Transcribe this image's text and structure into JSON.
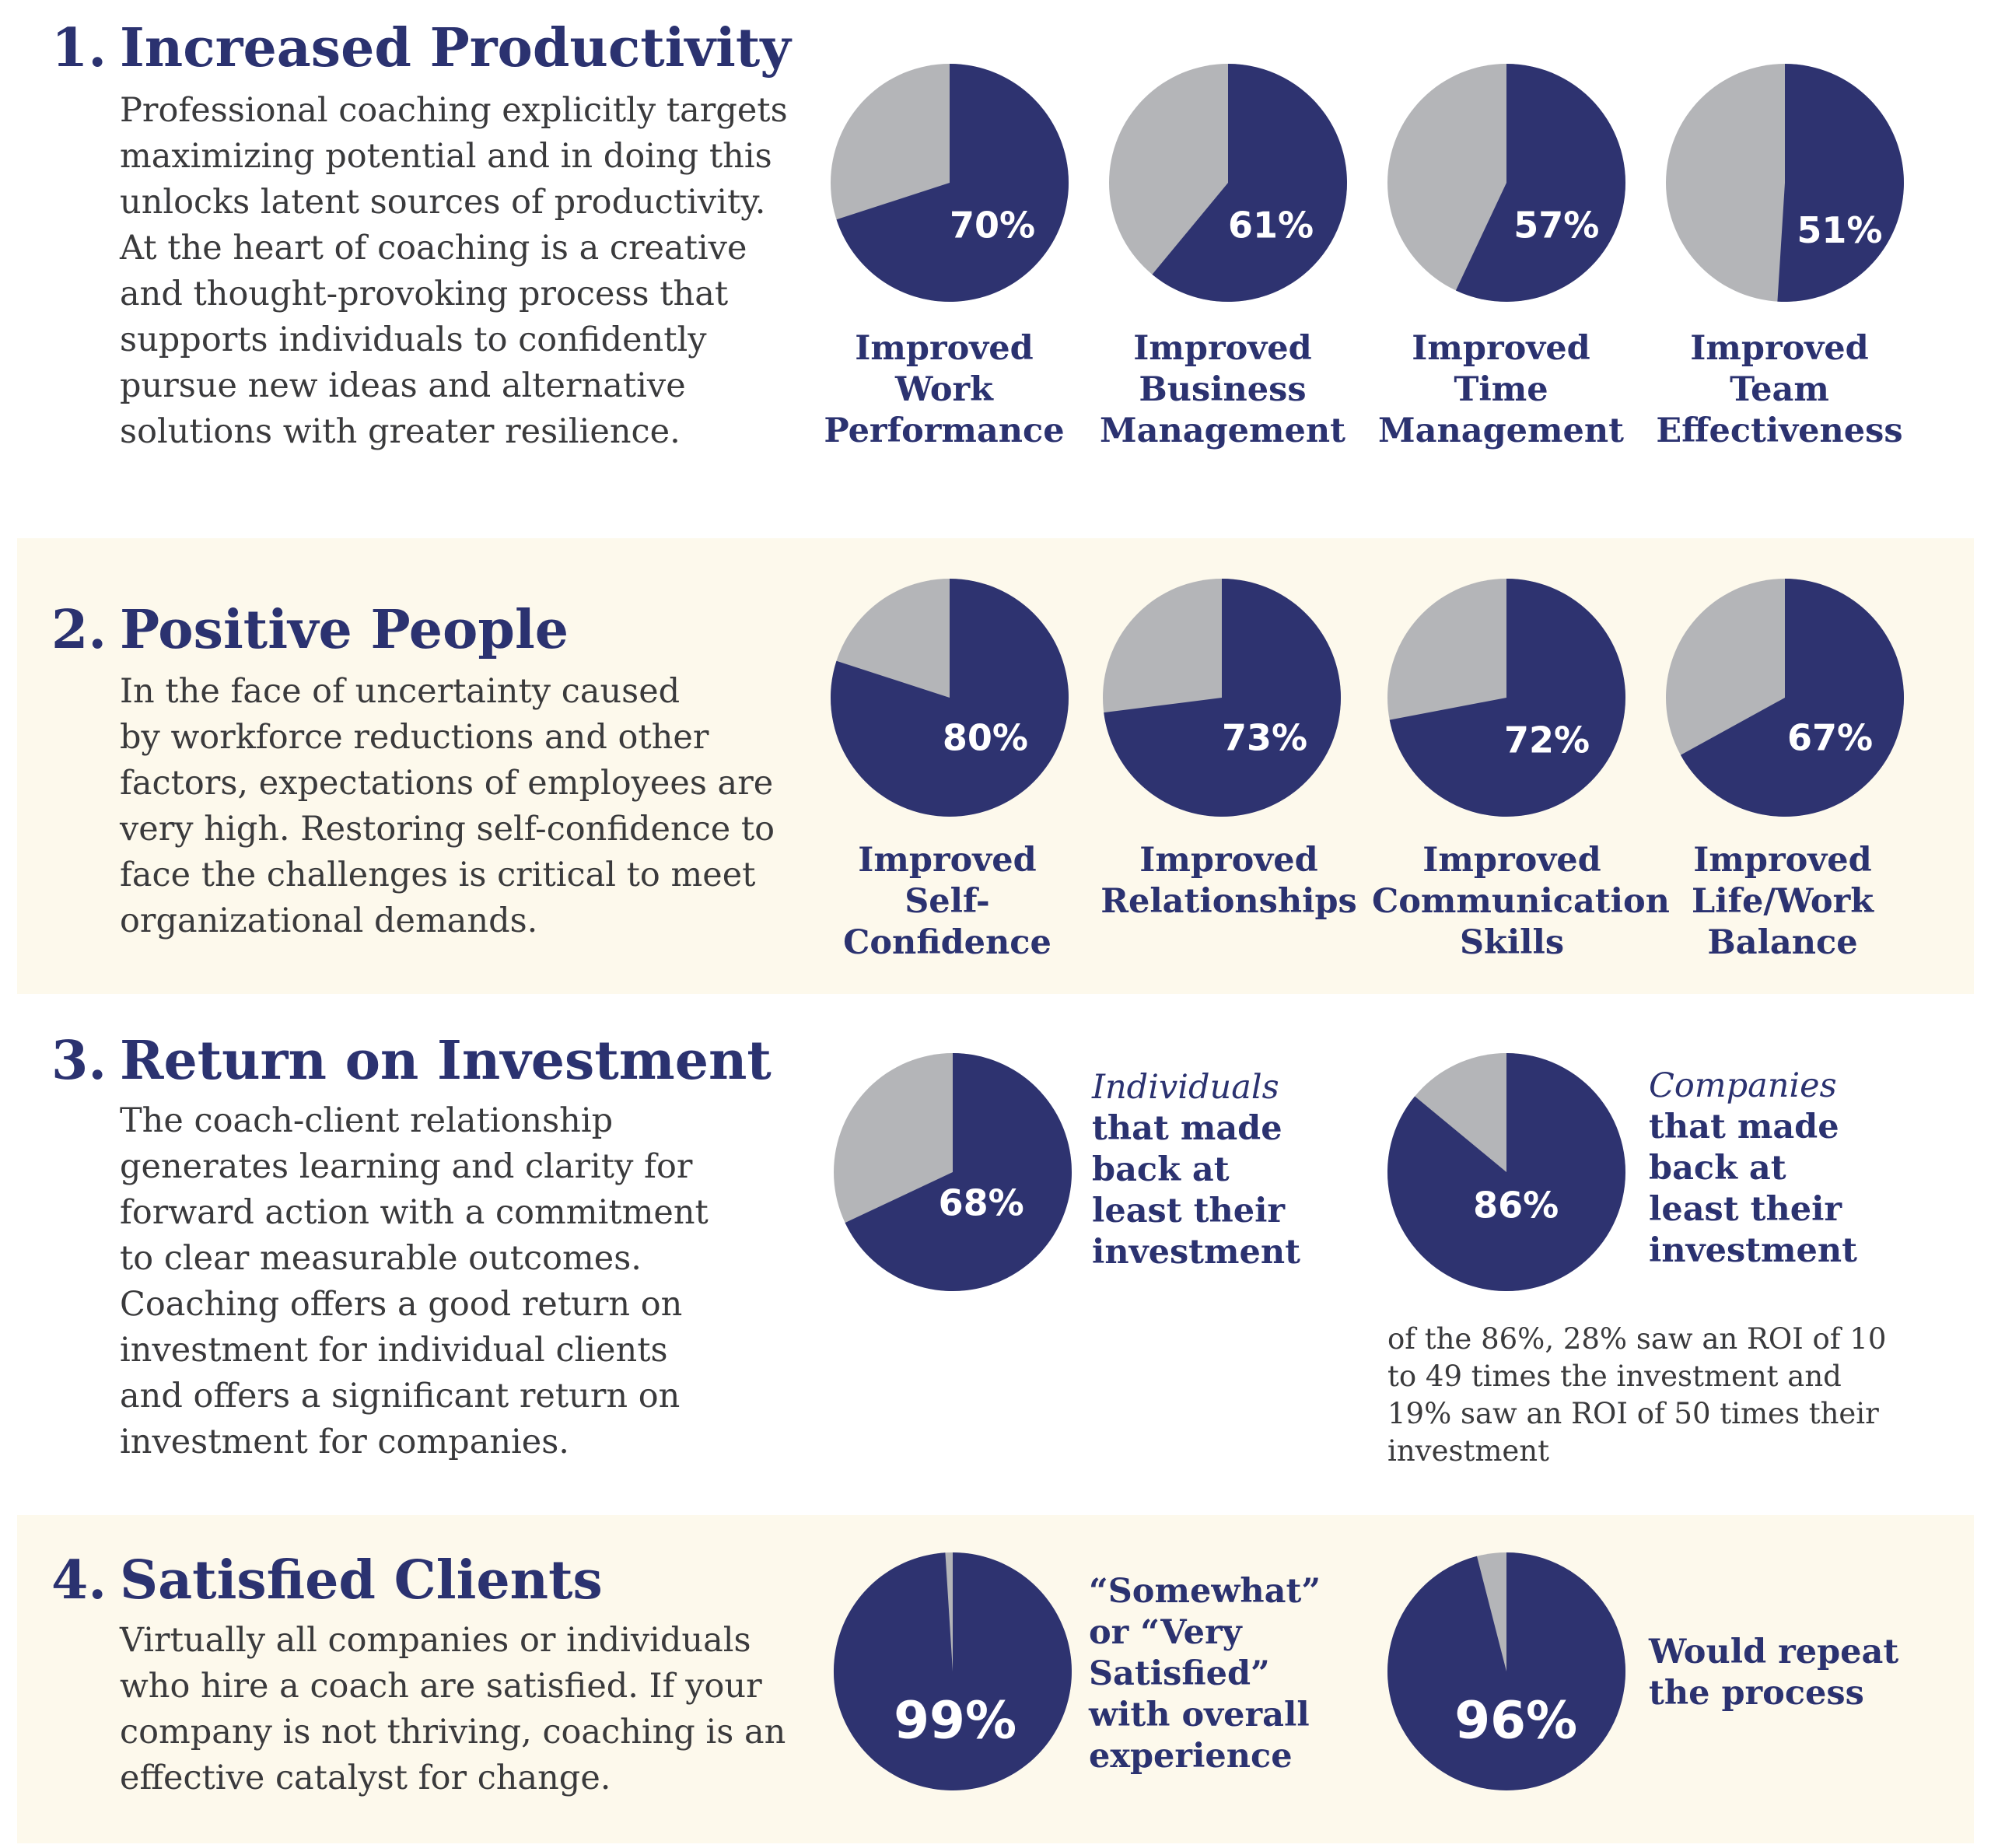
{
  "colors": {
    "navy": "#2e3370",
    "grey": "#b4b5b8",
    "band": "#fdf9ec",
    "text": "#3a3a3c"
  },
  "sections": [
    {
      "number": "1.",
      "title": "Increased Productivity",
      "body": [
        "Professional coaching explicitly targets",
        "maximizing potential and in doing this",
        "unlocks latent sources of productivity.",
        "At the heart of coaching is a creative",
        "and thought-provoking process that",
        "supports individuals to confidently",
        "pursue new ideas and alternative",
        "solutions with greater resilience."
      ],
      "labels": [
        [
          "Improved",
          "Work",
          "Performance"
        ],
        [
          "Improved",
          "Business",
          "Management"
        ],
        [
          "Improved",
          "Time",
          "Management"
        ],
        [
          "Improved",
          "Team",
          "Effectiveness"
        ]
      ]
    },
    {
      "number": "2.",
      "title": "Positive People",
      "body": [
        "In the face of uncertainty caused",
        "by workforce reductions and other",
        "factors, expectations of employees are",
        "very high. Restoring self-confidence to",
        "face the challenges is critical to meet",
        "organizational demands."
      ],
      "labels": [
        [
          "Improved",
          "Self-",
          "Confidence"
        ],
        [
          "Improved",
          "Relationships"
        ],
        [
          "Improved",
          "Communication",
          "Skills"
        ],
        [
          "Improved",
          "Life/Work",
          "Balance"
        ]
      ]
    },
    {
      "number": "3.",
      "title": "Return on Investment",
      "body": [
        "The coach-client relationship",
        "generates learning and clarity for",
        "forward action with a commitment",
        "to clear measurable outcomes.",
        "Coaching offers a good return on",
        "investment for individual clients",
        "and offers a significant return on",
        "investment for companies."
      ],
      "side_labels": [
        {
          "lead": "Individuals",
          "rest": [
            "that made",
            "back at",
            "least their",
            "investment"
          ]
        },
        {
          "lead": "Companies",
          "rest": [
            "that made",
            "back at",
            "least their",
            "investment"
          ]
        }
      ],
      "note": [
        "of the 86%, 28% saw an ROI of 10",
        "to 49 times the investment and",
        "19% saw an ROI of 50 times their",
        "investment"
      ]
    },
    {
      "number": "4.",
      "title": "Satisfied Clients",
      "body": [
        "Virtually all companies or individuals",
        "who hire a coach are satisfied. If your",
        "company is not thriving, coaching is an",
        "effective catalyst for change."
      ],
      "side_labels": [
        [
          "“Somewhat”",
          "or “Very",
          "Satisfied”",
          "with overall",
          "experience"
        ],
        [
          "Would repeat",
          "the process"
        ]
      ]
    }
  ],
  "chart_data": [
    {
      "type": "pie",
      "section": "Increased Productivity",
      "categories": [
        "Improved Work Performance",
        "Improved Business Management",
        "Improved Time Management",
        "Improved Team Effectiveness"
      ],
      "values": [
        70,
        61,
        57,
        51
      ],
      "value_labels": [
        "70%",
        "61%",
        "57%",
        "51%"
      ]
    },
    {
      "type": "pie",
      "section": "Positive People",
      "categories": [
        "Improved Self-Confidence",
        "Improved Relationships",
        "Improved Communication Skills",
        "Improved Life/Work Balance"
      ],
      "values": [
        80,
        73,
        72,
        67
      ],
      "value_labels": [
        "80%",
        "73%",
        "72%",
        "67%"
      ]
    },
    {
      "type": "pie",
      "section": "Return on Investment",
      "categories": [
        "Individuals that made back at least their investment",
        "Companies that made back at least their investment"
      ],
      "values": [
        68,
        86
      ],
      "value_labels": [
        "68%",
        "86%"
      ]
    },
    {
      "type": "pie",
      "section": "Satisfied Clients",
      "categories": [
        "“Somewhat” or “Very Satisfied” with overall experience",
        "Would repeat the process"
      ],
      "values": [
        99,
        96
      ],
      "value_labels": [
        "99%",
        "96%"
      ]
    }
  ]
}
